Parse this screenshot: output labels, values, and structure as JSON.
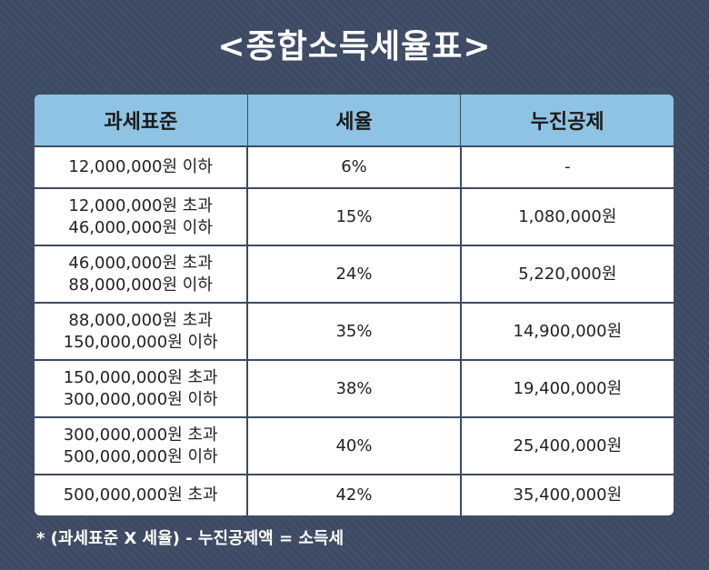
{
  "title": "<종합소득세율표>",
  "table": {
    "headers": [
      "과세표준",
      "세율",
      "누진공제"
    ],
    "rows": [
      {
        "base": [
          "12,000,000원 이하"
        ],
        "rate": "6%",
        "deduction": "-"
      },
      {
        "base": [
          "12,000,000원 초과",
          "46,000,000원 이하"
        ],
        "rate": "15%",
        "deduction": "1,080,000원"
      },
      {
        "base": [
          "46,000,000원 초과",
          "88,000,000원 이하"
        ],
        "rate": "24%",
        "deduction": "5,220,000원"
      },
      {
        "base": [
          "88,000,000원 초과",
          "150,000,000원 이하"
        ],
        "rate": "35%",
        "deduction": "14,900,000원"
      },
      {
        "base": [
          "150,000,000원 초과",
          "300,000,000원 이하"
        ],
        "rate": "38%",
        "deduction": "19,400,000원"
      },
      {
        "base": [
          "300,000,000원 초과",
          "500,000,000원 이하"
        ],
        "rate": "40%",
        "deduction": "25,400,000원"
      },
      {
        "base": [
          "500,000,000원 초과"
        ],
        "rate": "42%",
        "deduction": "35,400,000원"
      }
    ]
  },
  "footnote": "* (과세표준 X 세율) - 누진공제액 = 소득세",
  "colors": {
    "background": "#3d4a63",
    "header": "#8ec3e3",
    "cell": "#ffffff"
  }
}
